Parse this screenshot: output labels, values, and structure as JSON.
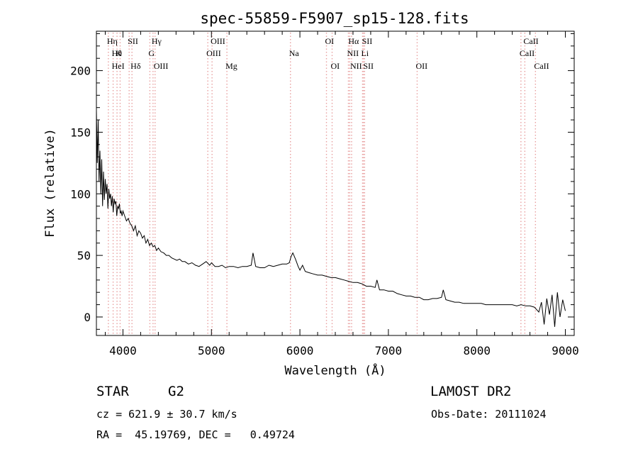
{
  "chart_data": {
    "type": "line",
    "title": "spec-55859-F5907_sp15-128.fits",
    "xlabel": "Wavelength (Å)",
    "ylabel": "Flux (relative)",
    "xlim": [
      3700,
      9100
    ],
    "ylim": [
      -15,
      232
    ],
    "xticks": [
      4000,
      5000,
      6000,
      7000,
      8000,
      9000
    ],
    "yticks": [
      0,
      50,
      100,
      150,
      200
    ],
    "grid": false,
    "line_color": "#000000",
    "spectral_line_color": "#e8a0a0",
    "spectral_lines": [
      {
        "wavelength": 3835,
        "label": "Hη",
        "row": 1
      },
      {
        "wavelength": 3889,
        "label": "Hθ",
        "row": 2
      },
      {
        "wavelength": 3933,
        "label": "K",
        "row": 2
      },
      {
        "wavelength": 3968,
        "label": "",
        "row": 2
      },
      {
        "wavelength": 3889,
        "label": "HeI",
        "row": 3
      },
      {
        "wavelength": 4070,
        "label": "SII",
        "row": 1
      },
      {
        "wavelength": 4102,
        "label": "Hδ",
        "row": 3
      },
      {
        "wavelength": 4340,
        "label": "Hγ",
        "row": 1
      },
      {
        "wavelength": 4304,
        "label": "G",
        "row": 2
      },
      {
        "wavelength": 4363,
        "label": "OIII",
        "row": 3
      },
      {
        "wavelength": 5007,
        "label": "OIII",
        "row": 1
      },
      {
        "wavelength": 4959,
        "label": "OIII",
        "row": 2
      },
      {
        "wavelength": 5175,
        "label": "Mg",
        "row": 3
      },
      {
        "wavelength": 5893,
        "label": "Na",
        "row": 2
      },
      {
        "wavelength": 6300,
        "label": "OI",
        "row": 1
      },
      {
        "wavelength": 6364,
        "label": "OI",
        "row": 3
      },
      {
        "wavelength": 6563,
        "label": "Hα",
        "row": 1
      },
      {
        "wavelength": 6717,
        "label": "SII",
        "row": 1
      },
      {
        "wavelength": 6548,
        "label": "NII",
        "row": 2
      },
      {
        "wavelength": 6708,
        "label": "Li",
        "row": 2
      },
      {
        "wavelength": 6584,
        "label": "NII",
        "row": 3
      },
      {
        "wavelength": 6731,
        "label": "SII",
        "row": 3
      },
      {
        "wavelength": 7325,
        "label": "OII",
        "row": 3
      },
      {
        "wavelength": 8542,
        "label": "CaII",
        "row": 1
      },
      {
        "wavelength": 8498,
        "label": "CaII",
        "row": 2
      },
      {
        "wavelength": 8662,
        "label": "CaII",
        "row": 3
      }
    ],
    "series": [
      {
        "x": [
          3700,
          3710,
          3720,
          3730,
          3740,
          3750,
          3760,
          3770,
          3780,
          3790,
          3800,
          3810,
          3820,
          3830,
          3840,
          3850,
          3860,
          3870,
          3880,
          3890,
          3900,
          3910,
          3920,
          3930,
          3940,
          3950,
          3960,
          3970,
          3980,
          3990,
          4000,
          4020,
          4040,
          4060,
          4080,
          4100,
          4120,
          4140,
          4160,
          4180,
          4200,
          4220,
          4240,
          4260,
          4280,
          4300,
          4320,
          4340,
          4360,
          4380,
          4400,
          4430,
          4460,
          4490,
          4520,
          4550,
          4580,
          4610,
          4640,
          4670,
          4700,
          4740,
          4780,
          4820,
          4860,
          4900,
          4940,
          4980,
          5000,
          5040,
          5080,
          5120,
          5160,
          5200,
          5250,
          5300,
          5350,
          5400,
          5450,
          5470,
          5500,
          5550,
          5600,
          5650,
          5700,
          5750,
          5800,
          5850,
          5880,
          5900,
          5920,
          5950,
          5980,
          6000,
          6030,
          6060,
          6100,
          6150,
          6200,
          6250,
          6300,
          6350,
          6400,
          6450,
          6500,
          6550,
          6600,
          6650,
          6700,
          6750,
          6800,
          6850,
          6870,
          6900,
          6950,
          7000,
          7050,
          7100,
          7150,
          7200,
          7250,
          7300,
          7350,
          7400,
          7450,
          7500,
          7550,
          7600,
          7620,
          7650,
          7700,
          7750,
          7800,
          7850,
          7900,
          7950,
          8000,
          8050,
          8100,
          8150,
          8200,
          8250,
          8300,
          8350,
          8400,
          8450,
          8500,
          8550,
          8600,
          8650,
          8700,
          8730,
          8760,
          8790,
          8820,
          8850,
          8880,
          8910,
          8940,
          8970,
          9000
        ],
        "y": [
          168,
          125,
          160,
          110,
          135,
          100,
          128,
          90,
          118,
          95,
          112,
          100,
          108,
          88,
          104,
          96,
          100,
          90,
          98,
          85,
          96,
          92,
          94,
          82,
          90,
          88,
          92,
          84,
          86,
          82,
          86,
          82,
          78,
          80,
          76,
          74,
          70,
          74,
          66,
          70,
          68,
          64,
          66,
          60,
          63,
          58,
          60,
          57,
          58,
          54,
          56,
          53,
          52,
          50,
          50,
          48,
          47,
          46,
          47,
          45,
          45,
          43,
          44,
          42,
          41,
          43,
          45,
          42,
          44,
          41,
          41,
          42,
          40,
          41,
          41,
          40,
          41,
          41,
          42,
          52,
          41,
          40,
          40,
          42,
          41,
          42,
          43,
          43,
          44,
          49,
          52,
          47,
          41,
          38,
          42,
          37,
          36,
          35,
          34,
          34,
          33,
          32,
          32,
          31,
          30,
          29,
          28,
          28,
          27,
          25,
          25,
          24,
          30,
          22,
          22,
          21,
          21,
          19,
          18,
          17,
          17,
          16,
          16,
          14,
          14,
          15,
          15,
          16,
          22,
          14,
          13,
          12,
          12,
          11,
          11,
          11,
          11,
          11,
          10,
          10,
          10,
          10,
          10,
          10,
          10,
          9,
          10,
          9,
          9,
          8,
          4,
          12,
          -6,
          15,
          2,
          18,
          -8,
          20,
          0,
          14,
          5
        ]
      }
    ]
  },
  "footer": {
    "object_type": "STAR",
    "subclass": "G2",
    "survey": "LAMOST DR2",
    "cz": "cz = 621.9 ± 30.7 km/s",
    "obs_date": "Obs-Date: 20111024",
    "coords": "RA =  45.19769, DEC =   0.49724"
  }
}
